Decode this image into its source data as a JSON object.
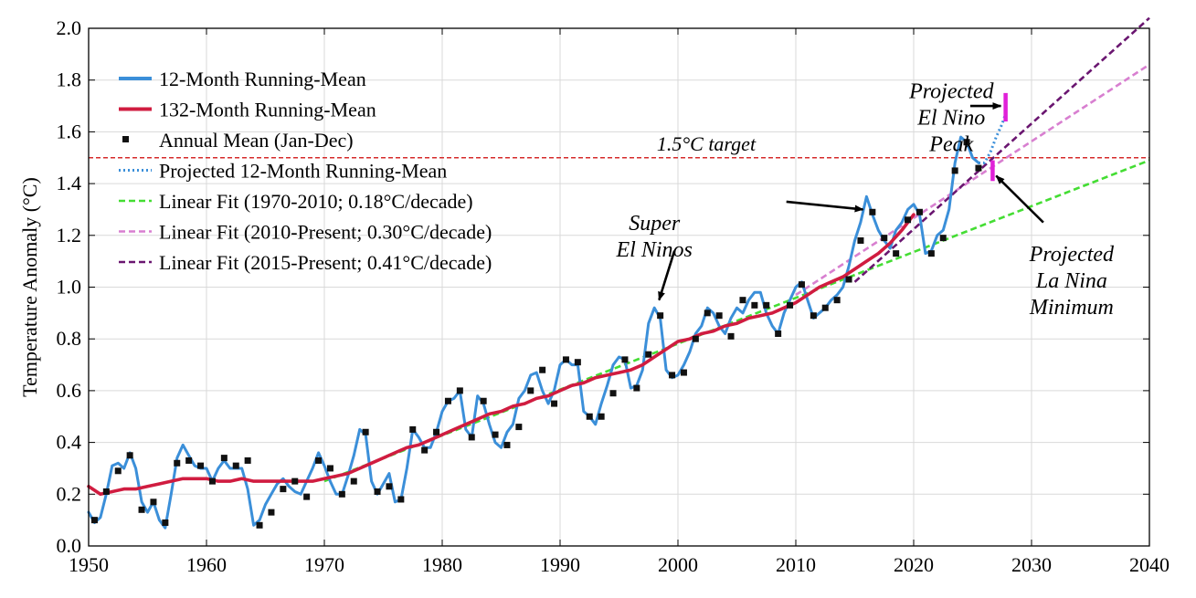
{
  "chart_data": {
    "type": "line",
    "title": "",
    "xlabel": "",
    "ylabel": "Temperature Anomaly (°C)",
    "xlim": [
      1950,
      2040
    ],
    "ylim": [
      0.0,
      2.0
    ],
    "x_ticks": [
      1950,
      1960,
      1970,
      1980,
      1990,
      2000,
      2010,
      2020,
      2030,
      2040
    ],
    "x_tick_labels": [
      "1950",
      "1960",
      "1970",
      "1980",
      "1990",
      "2000",
      "2010",
      "2020",
      "2030",
      "2040"
    ],
    "y_ticks": [
      0.0,
      0.2,
      0.4,
      0.6,
      0.8,
      1.0,
      1.2,
      1.4,
      1.6,
      1.8,
      2.0
    ],
    "y_tick_labels": [
      "0.0",
      "0.2",
      "0.4",
      "0.6",
      "0.8",
      "1.0",
      "1.2",
      "1.4",
      "1.6",
      "1.8",
      "2.0"
    ],
    "grid": true,
    "legend_position": "top-left",
    "colors": {
      "running12": "#3b8fd9",
      "running132": "#d01c40",
      "annual": "#111111",
      "projected": "#3b8fd9",
      "fit1970": "#44dd33",
      "fit2010": "#d87fd0",
      "fit2015": "#6a1670",
      "target": "#d62b2b",
      "projection_bar": "#e020d8"
    },
    "legend": [
      {
        "label": "12-Month Running-Mean",
        "style": "solid-thick",
        "color": "#3b8fd9"
      },
      {
        "label": "132-Month Running-Mean",
        "style": "solid-thick",
        "color": "#d01c40"
      },
      {
        "label": "Annual Mean (Jan-Dec)",
        "style": "marker",
        "color": "#111111"
      },
      {
        "label": "Projected 12-Month Running-Mean",
        "style": "dotted",
        "color": "#3b8fd9"
      },
      {
        "label": "Linear Fit (1970-2010; 0.18°C/decade)",
        "style": "dashed",
        "color": "#44dd33"
      },
      {
        "label": "Linear Fit (2010-Present; 0.30°C/decade)",
        "style": "dashed",
        "color": "#d87fd0"
      },
      {
        "label": "Linear Fit (2015-Present; 0.41°C/decade)",
        "style": "dashed",
        "color": "#6a1670"
      }
    ],
    "target_line": {
      "y": 1.5,
      "label": "1.5°C target"
    },
    "annotations": [
      {
        "lines": [
          "Super",
          "El Ninos"
        ],
        "text_x": 1998.0,
        "text_y": 1.22
      },
      {
        "lines": [
          "Projected",
          "El Nino",
          "Peak"
        ],
        "text_x": 2023.2,
        "text_y": 1.73
      },
      {
        "lines": [
          "Projected",
          "La Nina",
          "Minimum"
        ],
        "text_x": 2033.4,
        "text_y": 1.1
      }
    ],
    "arrows": [
      {
        "from": [
          1999.7,
          1.14
        ],
        "to": [
          1998.4,
          0.95
        ]
      },
      {
        "from": [
          2009.2,
          1.33
        ],
        "to": [
          2015.7,
          1.3
        ]
      },
      {
        "from": [
          2024.8,
          1.7
        ],
        "to": [
          2027.4,
          1.7
        ]
      },
      {
        "from": [
          2031.0,
          1.25
        ],
        "to": [
          2027.0,
          1.43
        ]
      }
    ],
    "series": [
      {
        "name": "12-Month Running-Mean",
        "x": [
          1950.0,
          1950.5,
          1951.0,
          1951.5,
          1952.0,
          1952.5,
          1953.0,
          1953.5,
          1954.0,
          1954.5,
          1955.0,
          1955.5,
          1956.0,
          1956.5,
          1957.0,
          1957.5,
          1958.0,
          1958.5,
          1959.0,
          1959.5,
          1960.0,
          1960.5,
          1961.0,
          1961.5,
          1962.0,
          1962.5,
          1963.0,
          1963.5,
          1964.0,
          1964.5,
          1965.0,
          1965.5,
          1966.0,
          1966.5,
          1967.0,
          1967.5,
          1968.0,
          1968.5,
          1969.0,
          1969.5,
          1970.0,
          1970.5,
          1971.0,
          1971.5,
          1972.0,
          1972.5,
          1973.0,
          1973.5,
          1974.0,
          1974.5,
          1975.0,
          1975.5,
          1976.0,
          1976.5,
          1977.0,
          1977.5,
          1978.0,
          1978.5,
          1979.0,
          1979.5,
          1980.0,
          1980.5,
          1981.0,
          1981.5,
          1982.0,
          1982.5,
          1983.0,
          1983.5,
          1984.0,
          1984.5,
          1985.0,
          1985.5,
          1986.0,
          1986.5,
          1987.0,
          1987.5,
          1988.0,
          1988.5,
          1989.0,
          1989.5,
          1990.0,
          1990.5,
          1991.0,
          1991.5,
          1992.0,
          1992.5,
          1993.0,
          1993.5,
          1994.0,
          1994.5,
          1995.0,
          1995.5,
          1996.0,
          1996.5,
          1997.0,
          1997.5,
          1998.0,
          1998.5,
          1999.0,
          1999.5,
          2000.0,
          2000.5,
          2001.0,
          2001.5,
          2002.0,
          2002.5,
          2003.0,
          2003.5,
          2004.0,
          2004.5,
          2005.0,
          2005.5,
          2006.0,
          2006.5,
          2007.0,
          2007.5,
          2008.0,
          2008.5,
          2009.0,
          2009.5,
          2010.0,
          2010.5,
          2011.0,
          2011.5,
          2012.0,
          2012.5,
          2013.0,
          2013.5,
          2014.0,
          2014.5,
          2015.0,
          2015.5,
          2016.0,
          2016.5,
          2017.0,
          2017.5,
          2018.0,
          2018.5,
          2019.0,
          2019.5,
          2020.0,
          2020.5,
          2021.0,
          2021.5,
          2022.0,
          2022.5,
          2023.0,
          2023.5,
          2024.0,
          2024.5,
          2025.0,
          2025.5
        ],
        "y": [
          0.13,
          0.09,
          0.11,
          0.2,
          0.31,
          0.32,
          0.3,
          0.36,
          0.3,
          0.17,
          0.13,
          0.17,
          0.1,
          0.07,
          0.2,
          0.34,
          0.39,
          0.35,
          0.31,
          0.3,
          0.3,
          0.25,
          0.3,
          0.33,
          0.3,
          0.3,
          0.3,
          0.22,
          0.08,
          0.1,
          0.16,
          0.2,
          0.24,
          0.26,
          0.23,
          0.21,
          0.2,
          0.25,
          0.3,
          0.36,
          0.31,
          0.25,
          0.2,
          0.2,
          0.27,
          0.35,
          0.45,
          0.43,
          0.25,
          0.2,
          0.24,
          0.28,
          0.17,
          0.18,
          0.3,
          0.45,
          0.42,
          0.38,
          0.38,
          0.44,
          0.52,
          0.56,
          0.57,
          0.6,
          0.45,
          0.42,
          0.58,
          0.55,
          0.47,
          0.4,
          0.38,
          0.44,
          0.47,
          0.57,
          0.6,
          0.66,
          0.67,
          0.6,
          0.55,
          0.6,
          0.7,
          0.72,
          0.7,
          0.7,
          0.52,
          0.5,
          0.47,
          0.55,
          0.62,
          0.7,
          0.73,
          0.72,
          0.61,
          0.62,
          0.68,
          0.86,
          0.92,
          0.88,
          0.68,
          0.65,
          0.66,
          0.7,
          0.75,
          0.82,
          0.85,
          0.92,
          0.9,
          0.85,
          0.82,
          0.88,
          0.92,
          0.9,
          0.95,
          0.98,
          0.98,
          0.9,
          0.85,
          0.82,
          0.9,
          0.95,
          1.0,
          1.02,
          0.95,
          0.88,
          0.9,
          0.92,
          0.95,
          0.97,
          1.0,
          1.08,
          1.18,
          1.25,
          1.35,
          1.28,
          1.22,
          1.18,
          1.15,
          1.22,
          1.25,
          1.3,
          1.32,
          1.28,
          1.13,
          1.14,
          1.2,
          1.22,
          1.3,
          1.48,
          1.58,
          1.56,
          1.5,
          1.48
        ]
      },
      {
        "name": "132-Month Running-Mean",
        "x": [
          1950,
          1951,
          1952,
          1953,
          1954,
          1955,
          1956,
          1957,
          1958,
          1959,
          1960,
          1961,
          1962,
          1963,
          1964,
          1965,
          1966,
          1967,
          1968,
          1969,
          1970,
          1971,
          1972,
          1973,
          1974,
          1975,
          1976,
          1977,
          1978,
          1979,
          1980,
          1981,
          1982,
          1983,
          1984,
          1985,
          1986,
          1987,
          1988,
          1989,
          1990,
          1991,
          1992,
          1993,
          1994,
          1995,
          1996,
          1997,
          1998,
          1999,
          2000,
          2001,
          2002,
          2003,
          2004,
          2005,
          2006,
          2007,
          2008,
          2009,
          2010,
          2011,
          2012,
          2013,
          2014,
          2015,
          2016,
          2017,
          2018,
          2019,
          2020
        ],
        "y": [
          0.23,
          0.2,
          0.21,
          0.22,
          0.22,
          0.23,
          0.24,
          0.25,
          0.26,
          0.26,
          0.26,
          0.25,
          0.25,
          0.26,
          0.25,
          0.25,
          0.25,
          0.25,
          0.25,
          0.25,
          0.26,
          0.27,
          0.28,
          0.3,
          0.32,
          0.34,
          0.36,
          0.38,
          0.39,
          0.41,
          0.43,
          0.45,
          0.47,
          0.49,
          0.51,
          0.52,
          0.54,
          0.55,
          0.57,
          0.58,
          0.6,
          0.62,
          0.63,
          0.65,
          0.66,
          0.67,
          0.68,
          0.7,
          0.73,
          0.76,
          0.79,
          0.8,
          0.82,
          0.83,
          0.85,
          0.86,
          0.88,
          0.89,
          0.9,
          0.92,
          0.94,
          0.97,
          1.0,
          1.02,
          1.04,
          1.07,
          1.1,
          1.13,
          1.17,
          1.22,
          1.28
        ]
      },
      {
        "name": "Annual Mean (Jan-Dec)",
        "x": [
          1950.5,
          1951.5,
          1952.5,
          1953.5,
          1954.5,
          1955.5,
          1956.5,
          1957.5,
          1958.5,
          1959.5,
          1960.5,
          1961.5,
          1962.5,
          1963.5,
          1964.5,
          1965.5,
          1966.5,
          1967.5,
          1968.5,
          1969.5,
          1970.5,
          1971.5,
          1972.5,
          1973.5,
          1974.5,
          1975.5,
          1976.5,
          1977.5,
          1978.5,
          1979.5,
          1980.5,
          1981.5,
          1982.5,
          1983.5,
          1984.5,
          1985.5,
          1986.5,
          1987.5,
          1988.5,
          1989.5,
          1990.5,
          1991.5,
          1992.5,
          1993.5,
          1994.5,
          1995.5,
          1996.5,
          1997.5,
          1998.5,
          1999.5,
          2000.5,
          2001.5,
          2002.5,
          2003.5,
          2004.5,
          2005.5,
          2006.5,
          2007.5,
          2008.5,
          2009.5,
          2010.5,
          2011.5,
          2012.5,
          2013.5,
          2014.5,
          2015.5,
          2016.5,
          2017.5,
          2018.5,
          2019.5,
          2020.5,
          2021.5,
          2022.5,
          2023.5,
          2024.5,
          2025.5
        ],
        "y": [
          0.1,
          0.21,
          0.29,
          0.35,
          0.14,
          0.17,
          0.09,
          0.32,
          0.33,
          0.31,
          0.25,
          0.34,
          0.31,
          0.33,
          0.08,
          0.13,
          0.22,
          0.25,
          0.19,
          0.33,
          0.3,
          0.2,
          0.25,
          0.44,
          0.21,
          0.23,
          0.18,
          0.45,
          0.37,
          0.44,
          0.56,
          0.6,
          0.42,
          0.56,
          0.43,
          0.39,
          0.46,
          0.6,
          0.68,
          0.55,
          0.72,
          0.71,
          0.5,
          0.5,
          0.59,
          0.72,
          0.61,
          0.74,
          0.89,
          0.66,
          0.67,
          0.8,
          0.9,
          0.89,
          0.81,
          0.95,
          0.93,
          0.93,
          0.82,
          0.93,
          1.01,
          0.89,
          0.92,
          0.95,
          1.03,
          1.18,
          1.29,
          1.19,
          1.13,
          1.26,
          1.29,
          1.13,
          1.19,
          1.45,
          1.56,
          1.46
        ]
      },
      {
        "name": "Projected 12-Month Running-Mean",
        "x": [
          2025.5,
          2026.0,
          2026.5,
          2027.0,
          2027.5,
          2027.8
        ],
        "y": [
          1.48,
          1.48,
          1.52,
          1.58,
          1.63,
          1.67
        ]
      },
      {
        "name": "Linear Fit (1970-2010; 0.18°C/decade)",
        "x": [
          1970,
          2040
        ],
        "y": [
          0.25,
          1.49
        ]
      },
      {
        "name": "Linear Fit (2010-Present; 0.30°C/decade)",
        "x": [
          2010,
          2040
        ],
        "y": [
          0.97,
          1.86
        ]
      },
      {
        "name": "Linear Fit (2015-Present; 0.41°C/decade)",
        "x": [
          2015,
          2040
        ],
        "y": [
          1.02,
          2.04
        ]
      }
    ],
    "projection_bars": [
      {
        "name": "Projected El Nino Peak",
        "x": 2027.8,
        "y_low": 1.64,
        "y_high": 1.75
      },
      {
        "name": "Projected La Nina Minimum",
        "x": 2026.7,
        "y_low": 1.41,
        "y_high": 1.49
      }
    ]
  }
}
